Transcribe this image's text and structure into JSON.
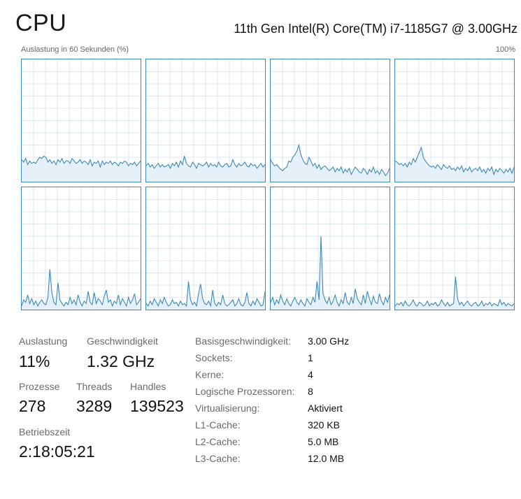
{
  "header": {
    "title": "CPU",
    "model": "11th Gen Intel(R) Core(TM) i7-1185G7 @ 3.00GHz",
    "util_label": "Auslastung in 60 Sekunden (%)",
    "util_max": "100%"
  },
  "colors": {
    "line": "#3d8ab8",
    "fill": "#e6f0f8",
    "grid": "#d9e8f2",
    "border": "#3d8ab8"
  },
  "chart_data": {
    "type": "line",
    "ylim": [
      0,
      100
    ],
    "grid": true,
    "series": [
      {
        "values": [
          18,
          16,
          19,
          14,
          17,
          15,
          16,
          15,
          18,
          20,
          19,
          21,
          20,
          16,
          18,
          15,
          17,
          14,
          18,
          16,
          19,
          15,
          17,
          17,
          15,
          19,
          17,
          15,
          16,
          18,
          15,
          17,
          16,
          14,
          18,
          13,
          16,
          15,
          17,
          12,
          17,
          14,
          16,
          15,
          17,
          14,
          16,
          15,
          13,
          16,
          15,
          17,
          16,
          13,
          15,
          14,
          16,
          13,
          15,
          17
        ]
      },
      {
        "values": [
          13,
          15,
          12,
          14,
          11,
          13,
          15,
          12,
          14,
          12,
          13,
          14,
          11,
          15,
          13,
          16,
          12,
          17,
          14,
          21,
          15,
          13,
          12,
          16,
          14,
          11,
          15,
          14,
          13,
          14,
          16,
          12,
          15,
          13,
          14,
          12,
          16,
          13,
          12,
          14,
          15,
          12,
          13,
          18,
          14,
          12,
          15,
          13,
          14,
          16,
          13,
          12,
          15,
          13,
          14,
          11,
          13,
          15,
          12,
          14
        ]
      },
      {
        "values": [
          18,
          15,
          13,
          14,
          12,
          10,
          9,
          11,
          12,
          17,
          16,
          20,
          22,
          25,
          30,
          22,
          18,
          15,
          14,
          20,
          17,
          13,
          15,
          11,
          14,
          10,
          12,
          13,
          11,
          9,
          10,
          12,
          8,
          11,
          9,
          12,
          7,
          10,
          8,
          11,
          6,
          9,
          12,
          10,
          8,
          7,
          11,
          9,
          6,
          10,
          8,
          12,
          7,
          9,
          6,
          10,
          8,
          5,
          7,
          11
        ]
      },
      {
        "values": [
          17,
          16,
          14,
          15,
          13,
          15,
          12,
          16,
          14,
          19,
          16,
          20,
          24,
          28,
          20,
          17,
          15,
          13,
          12,
          13,
          11,
          14,
          12,
          10,
          14,
          12,
          11,
          13,
          10,
          11,
          9,
          12,
          10,
          13,
          8,
          11,
          9,
          12,
          8,
          10,
          11,
          9,
          12,
          8,
          10,
          7,
          11,
          9,
          12,
          6,
          10,
          8,
          11,
          9,
          7,
          10,
          8,
          11,
          7,
          12
        ]
      },
      {
        "values": [
          3,
          8,
          6,
          12,
          5,
          9,
          4,
          7,
          3,
          6,
          8,
          5,
          4,
          10,
          33,
          14,
          6,
          4,
          22,
          8,
          5,
          3,
          6,
          4,
          10,
          5,
          8,
          4,
          12,
          6,
          3,
          7,
          5,
          15,
          6,
          4,
          14,
          5,
          9,
          7,
          4,
          11,
          16,
          6,
          8,
          3,
          7,
          5,
          12,
          4,
          9,
          6,
          3,
          10,
          5,
          8,
          13,
          4,
          6,
          9
        ]
      },
      {
        "values": [
          5,
          3,
          7,
          4,
          9,
          6,
          3,
          8,
          5,
          10,
          6,
          3,
          4,
          8,
          5,
          6,
          3,
          7,
          4,
          5,
          3,
          23,
          8,
          4,
          6,
          3,
          13,
          21,
          9,
          5,
          4,
          7,
          3,
          16,
          5,
          3,
          6,
          4,
          12,
          5,
          3,
          4,
          6,
          8,
          3,
          5,
          9,
          4,
          3,
          6,
          14,
          5,
          3,
          7,
          4,
          9,
          6,
          3,
          4,
          15
        ]
      },
      {
        "values": [
          6,
          10,
          4,
          8,
          5,
          12,
          7,
          4,
          9,
          5,
          3,
          7,
          10,
          6,
          4,
          8,
          5,
          3,
          9,
          6,
          4,
          10,
          6,
          23,
          8,
          60,
          13,
          8,
          5,
          10,
          4,
          7,
          12,
          6,
          3,
          8,
          5,
          14,
          6,
          4,
          10,
          5,
          17,
          9,
          6,
          4,
          12,
          5,
          15,
          9,
          4,
          11,
          6,
          5,
          13,
          7,
          4,
          10,
          6,
          12
        ]
      },
      {
        "values": [
          3,
          5,
          4,
          6,
          3,
          7,
          4,
          3,
          5,
          8,
          4,
          3,
          6,
          5,
          3,
          4,
          7,
          3,
          5,
          4,
          6,
          3,
          4,
          8,
          5,
          3,
          6,
          3,
          4,
          5,
          27,
          9,
          4,
          6,
          3,
          5,
          7,
          4,
          3,
          5,
          6,
          3,
          4,
          7,
          3,
          5,
          4,
          6,
          3,
          5,
          4,
          3,
          8,
          4,
          6,
          3,
          5,
          4,
          3,
          5
        ]
      }
    ]
  },
  "stats": {
    "auslastung_label": "Auslastung",
    "auslastung_value": "11%",
    "geschwindigkeit_label": "Geschwindigkeit",
    "geschwindigkeit_value": "1.32 GHz",
    "prozesse_label": "Prozesse",
    "prozesse_value": "278",
    "threads_label": "Threads",
    "threads_value": "3289",
    "handles_label": "Handles",
    "handles_value": "139523",
    "betriebszeit_label": "Betriebszeit",
    "betriebszeit_value": "2:18:05:21"
  },
  "info": [
    {
      "key": "Basisgeschwindigkeit:",
      "value": "3.00 GHz"
    },
    {
      "key": "Sockets:",
      "value": "1"
    },
    {
      "key": "Kerne:",
      "value": "4"
    },
    {
      "key": "Logische Prozessoren:",
      "value": "8"
    },
    {
      "key": "Virtualisierung:",
      "value": "Aktiviert"
    },
    {
      "key": "L1-Cache:",
      "value": "320 KB"
    },
    {
      "key": "L2-Cache:",
      "value": "5.0 MB"
    },
    {
      "key": "L3-Cache:",
      "value": "12.0 MB"
    }
  ]
}
